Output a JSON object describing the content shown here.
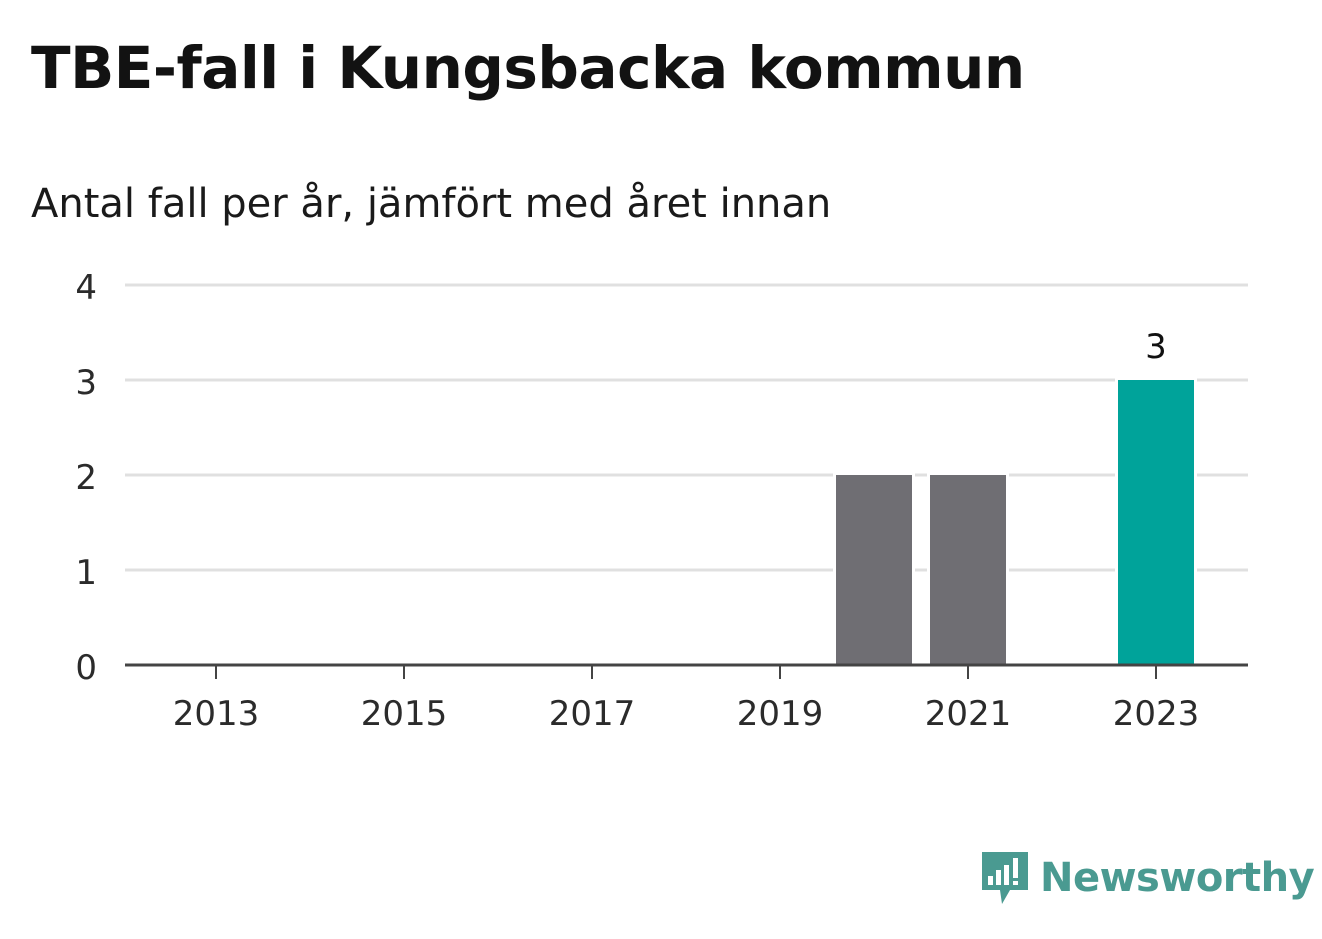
{
  "title": "TBE-fall i Kungsbacka kommun",
  "subtitle": "Antal fall per år, jämfört med året innan",
  "logo": {
    "text": "Newsworthy",
    "icon": "newsworthy-chart-icon",
    "color": "#4a9a91"
  },
  "chart_data": {
    "type": "bar",
    "categories": [
      "2013",
      "2014",
      "2015",
      "2016",
      "2017",
      "2018",
      "2019",
      "2020",
      "2021",
      "2022",
      "2023"
    ],
    "values": [
      0,
      0,
      0,
      0,
      0,
      0,
      0,
      2,
      2,
      0,
      3
    ],
    "x_tick_labels": [
      "2013",
      "2015",
      "2017",
      "2019",
      "2021",
      "2023"
    ],
    "y_ticks": [
      0,
      1,
      2,
      3,
      4
    ],
    "ylim": [
      0,
      4
    ],
    "xlabel": "",
    "ylabel": "",
    "grid": true,
    "highlight_category": "2023",
    "data_labels": [
      {
        "category": "2023",
        "value": 3,
        "text": "3"
      }
    ],
    "colors": {
      "bar": "#6f6e73",
      "highlight": "#00a39a",
      "grid": "#e0e0e0",
      "axis": "#444444",
      "tick_label": "#2b2b2b"
    }
  }
}
